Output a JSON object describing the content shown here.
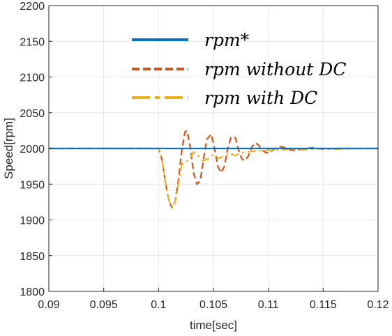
{
  "chart_data": {
    "type": "line",
    "title": "",
    "xlabel": "time[sec]",
    "ylabel": "Speed[rpm]",
    "xlim": [
      0.09,
      0.12
    ],
    "ylim": [
      1800,
      2200
    ],
    "x_ticks": [
      0.09,
      0.095,
      0.1,
      0.105,
      0.11,
      0.115,
      0.12
    ],
    "x_tick_labels": [
      "0.09",
      "0.095",
      "0.1",
      "0.105",
      "0.11",
      "0.115",
      "0.12"
    ],
    "y_ticks": [
      1800,
      1850,
      1900,
      1950,
      2000,
      2050,
      2100,
      2150,
      2200
    ],
    "y_tick_labels": [
      "1800",
      "1850",
      "1900",
      "1950",
      "2000",
      "2050",
      "2100",
      "2150",
      "2200"
    ],
    "grid": true,
    "legend_position": "top-center",
    "series": [
      {
        "name": "rpm*",
        "style": "solid",
        "color": "#0072BD",
        "x": [
          0.09,
          0.12
        ],
        "y": [
          2000,
          2000
        ]
      },
      {
        "name": "rpm without DC",
        "style": "dashed",
        "color": "#D95319",
        "x": [
          0.09,
          0.1,
          0.1003,
          0.1006,
          0.1009,
          0.1012,
          0.1015,
          0.1018,
          0.1021,
          0.1024,
          0.1026,
          0.1029,
          0.1032,
          0.1035,
          0.1038,
          0.1041,
          0.1044,
          0.1048,
          0.1051,
          0.1054,
          0.1057,
          0.106,
          0.1063,
          0.1066,
          0.107,
          0.1073,
          0.1076,
          0.1079,
          0.1082,
          0.1085,
          0.1088,
          0.1091,
          0.1094,
          0.1098,
          0.1102,
          0.1106,
          0.111,
          0.1115,
          0.112,
          0.1125,
          0.113,
          0.114,
          0.115,
          0.116,
          0.118,
          0.12
        ],
        "y": [
          2000,
          2000,
          1985,
          1955,
          1930,
          1917,
          1925,
          1955,
          1995,
          2023,
          2025,
          2000,
          1965,
          1950,
          1955,
          1985,
          2013,
          2020,
          2000,
          1975,
          1966,
          1975,
          2000,
          2016,
          2015,
          1997,
          1985,
          1983,
          1990,
          2002,
          2008,
          2005,
          1998,
          1994,
          1995,
          2000,
          2003,
          2001,
          1998,
          1997,
          1999,
          2001,
          1999,
          2000,
          2000,
          2000
        ]
      },
      {
        "name": "rpm with DC",
        "style": "dashdot",
        "color": "#EDB120",
        "x": [
          0.09,
          0.1,
          0.1003,
          0.1006,
          0.1009,
          0.1012,
          0.1015,
          0.1018,
          0.1021,
          0.1024,
          0.1028,
          0.1032,
          0.1036,
          0.104,
          0.1045,
          0.105,
          0.1055,
          0.106,
          0.1065,
          0.107,
          0.1075,
          0.108,
          0.1085,
          0.109,
          0.1095,
          0.11,
          0.1105,
          0.111,
          0.112,
          0.113,
          0.114,
          0.115,
          0.116,
          0.118,
          0.12
        ],
        "y": [
          2000,
          2000,
          1985,
          1955,
          1930,
          1917,
          1925,
          1950,
          1978,
          1980,
          1985,
          1995,
          1990,
          1983,
          1985,
          1992,
          1986,
          1990,
          1993,
          1990,
          1994,
          1995,
          1996,
          1997,
          1996,
          1998,
          1997,
          1998,
          1999,
          1998,
          1999,
          2000,
          1999,
          2000,
          2000
        ]
      }
    ]
  }
}
